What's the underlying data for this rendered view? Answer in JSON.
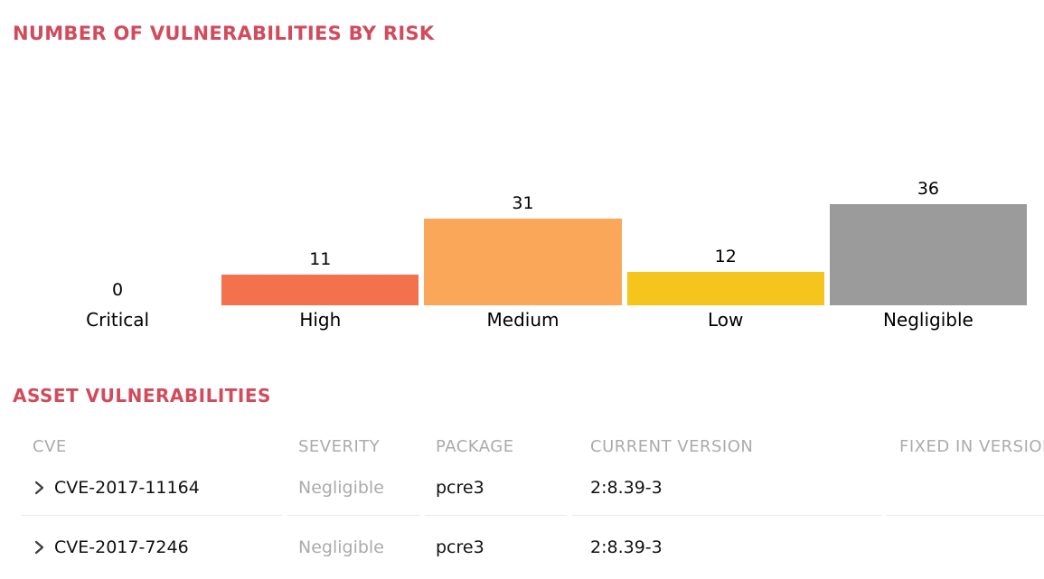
{
  "colors": {
    "accent": "#D14B5C",
    "muted_text": "#ABABAB",
    "body_text": "#111111",
    "divider": "#E9E9E9",
    "chevron": "#3C3C3C"
  },
  "chart_data": {
    "type": "bar",
    "title": "NUMBER OF VULNERABILITIES BY RISK",
    "categories": [
      "Critical",
      "High",
      "Medium",
      "Low",
      "Negligible"
    ],
    "values": [
      0,
      11,
      31,
      12,
      36
    ],
    "bar_colors": [
      null,
      "#F4714E",
      "#FAA75A",
      "#F6C51D",
      "#9B9B9B"
    ],
    "xlabel": "",
    "ylabel": "",
    "ylim": [
      0,
      40
    ],
    "grid": false,
    "legend": false,
    "value_labels_shown": true
  },
  "table": {
    "title": "ASSET VULNERABILITIES",
    "columns": [
      "CVE",
      "SEVERITY",
      "PACKAGE",
      "CURRENT VERSION",
      "FIXED IN VERSION"
    ],
    "rows": [
      {
        "cve": "CVE-2017-11164",
        "severity": "Negligible",
        "package": "pcre3",
        "current_version": "2:8.39-3",
        "fixed_in_version": ""
      },
      {
        "cve": "CVE-2017-7246",
        "severity": "Negligible",
        "package": "pcre3",
        "current_version": "2:8.39-3",
        "fixed_in_version": ""
      }
    ]
  },
  "icons": {
    "expand_chevron": "chevron-right"
  }
}
